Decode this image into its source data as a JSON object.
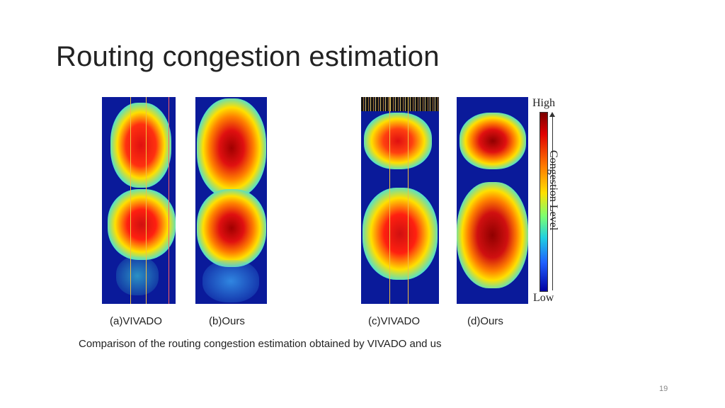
{
  "slide": {
    "title": "Routing congestion estimation",
    "page_number": "19"
  },
  "figure": {
    "panels": [
      {
        "id": "a",
        "label": "(a)VIVADO"
      },
      {
        "id": "b",
        "label": "(b)Ours"
      },
      {
        "id": "c",
        "label": "(c)VIVADO"
      },
      {
        "id": "d",
        "label": "(d)Ours"
      }
    ],
    "colorbar": {
      "high_label": "High",
      "low_label": "Low",
      "axis_label": "Congestion Level"
    },
    "caption": "Comparison of the routing congestion estimation obtained by VIVADO and us"
  },
  "colors": {
    "background": "#0a1a9a",
    "low": "#0000a0",
    "high": "#7a0000"
  }
}
